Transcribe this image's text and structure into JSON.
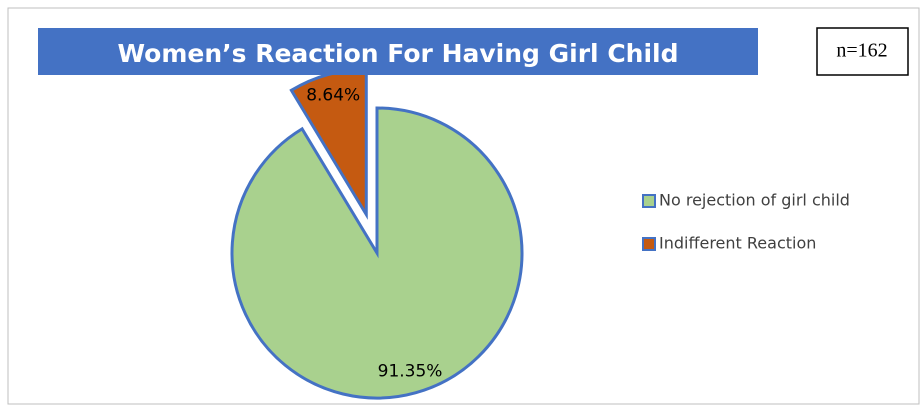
{
  "chart_data": {
    "type": "pie",
    "title": "Women’s Reaction For Having Girl Child",
    "annotation": "n=162",
    "categories": [
      "No rejection of girl child",
      "Indifferent Reaction"
    ],
    "values": [
      91.35,
      8.64
    ],
    "value_labels": [
      "91.35%",
      "8.64%"
    ],
    "colors": [
      "#a9d18e",
      "#c55a11"
    ],
    "exploded": [
      false,
      true
    ],
    "legend": "right"
  }
}
